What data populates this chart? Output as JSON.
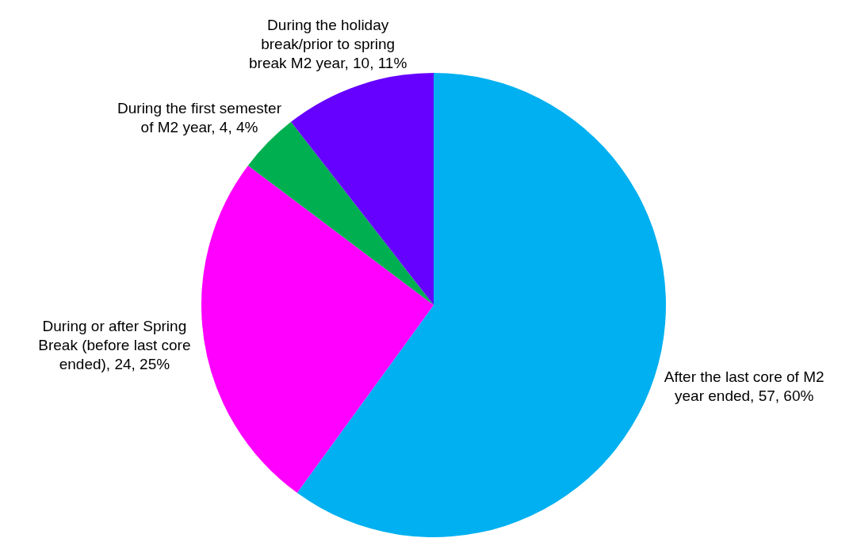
{
  "chart_data": {
    "type": "pie",
    "categories": [
      "After the last core of M2 year ended",
      "During or after Spring Break (before last core ended)",
      "During the first semester of M2 year",
      "During the holiday break/prior to spring break M2 year"
    ],
    "values": [
      57,
      24,
      4,
      10
    ],
    "colors": [
      "#00b0f0",
      "#ff00ff",
      "#00b050",
      "#6600ff"
    ],
    "value_labels": [
      "57, 60%",
      "24, 25%",
      "4, 4%",
      "10, 11%"
    ],
    "legend": false
  }
}
